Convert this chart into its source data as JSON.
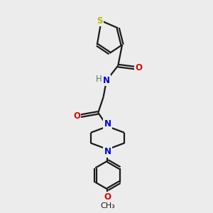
{
  "bg_color": "#ececec",
  "bond_color": "#1a1a1a",
  "S_color": "#b8b800",
  "N_color": "#0000e0",
  "O_color": "#e00000",
  "H_color": "#607070",
  "line_width": 1.6,
  "font_size": 8.5,
  "fig_w": 3.0,
  "fig_h": 3.0,
  "dpi": 100,
  "xlim": [
    0,
    10
  ],
  "ylim": [
    0,
    10
  ]
}
